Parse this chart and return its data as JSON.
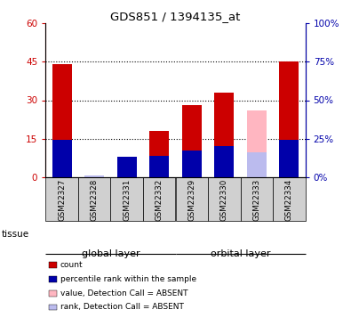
{
  "title": "GDS851 / 1394135_at",
  "samples": [
    "GSM22327",
    "GSM22328",
    "GSM22331",
    "GSM22332",
    "GSM22329",
    "GSM22330",
    "GSM22333",
    "GSM22334"
  ],
  "red_values": [
    44,
    0,
    8,
    18,
    28,
    33,
    0,
    45
  ],
  "blue_values": [
    24,
    0,
    13,
    14,
    17,
    20,
    0,
    24
  ],
  "pink_values": [
    0,
    0,
    0,
    0,
    0,
    0,
    26,
    0
  ],
  "lavender_values": [
    0,
    1,
    0,
    0,
    0,
    0,
    16,
    0
  ],
  "absent_mask": [
    false,
    false,
    false,
    false,
    false,
    false,
    true,
    false
  ],
  "ylim_left": [
    0,
    60
  ],
  "ylim_right": [
    0,
    100
  ],
  "yticks_left": [
    0,
    15,
    30,
    45,
    60
  ],
  "yticks_right": [
    0,
    25,
    50,
    75,
    100
  ],
  "yticklabels_left": [
    "0",
    "15",
    "30",
    "45",
    "60"
  ],
  "yticklabels_right": [
    "0%",
    "25%",
    "50%",
    "75%",
    "100%"
  ],
  "grid_ticks": [
    15,
    30,
    45
  ],
  "color_red": "#CC0000",
  "color_blue": "#0000AA",
  "color_pink": "#FFB6C1",
  "color_lavender": "#BBBBEE",
  "color_group_global": "#90EE90",
  "color_group_orbital": "#44DD44",
  "color_tick_bg": "#D0D0D0",
  "bar_width": 0.6,
  "legend_items": [
    {
      "color": "#CC0000",
      "label": "count"
    },
    {
      "color": "#0000AA",
      "label": "percentile rank within the sample"
    },
    {
      "color": "#FFB6C1",
      "label": "value, Detection Call = ABSENT"
    },
    {
      "color": "#BBBBEE",
      "label": "rank, Detection Call = ABSENT"
    }
  ],
  "tissue_label": "tissue"
}
